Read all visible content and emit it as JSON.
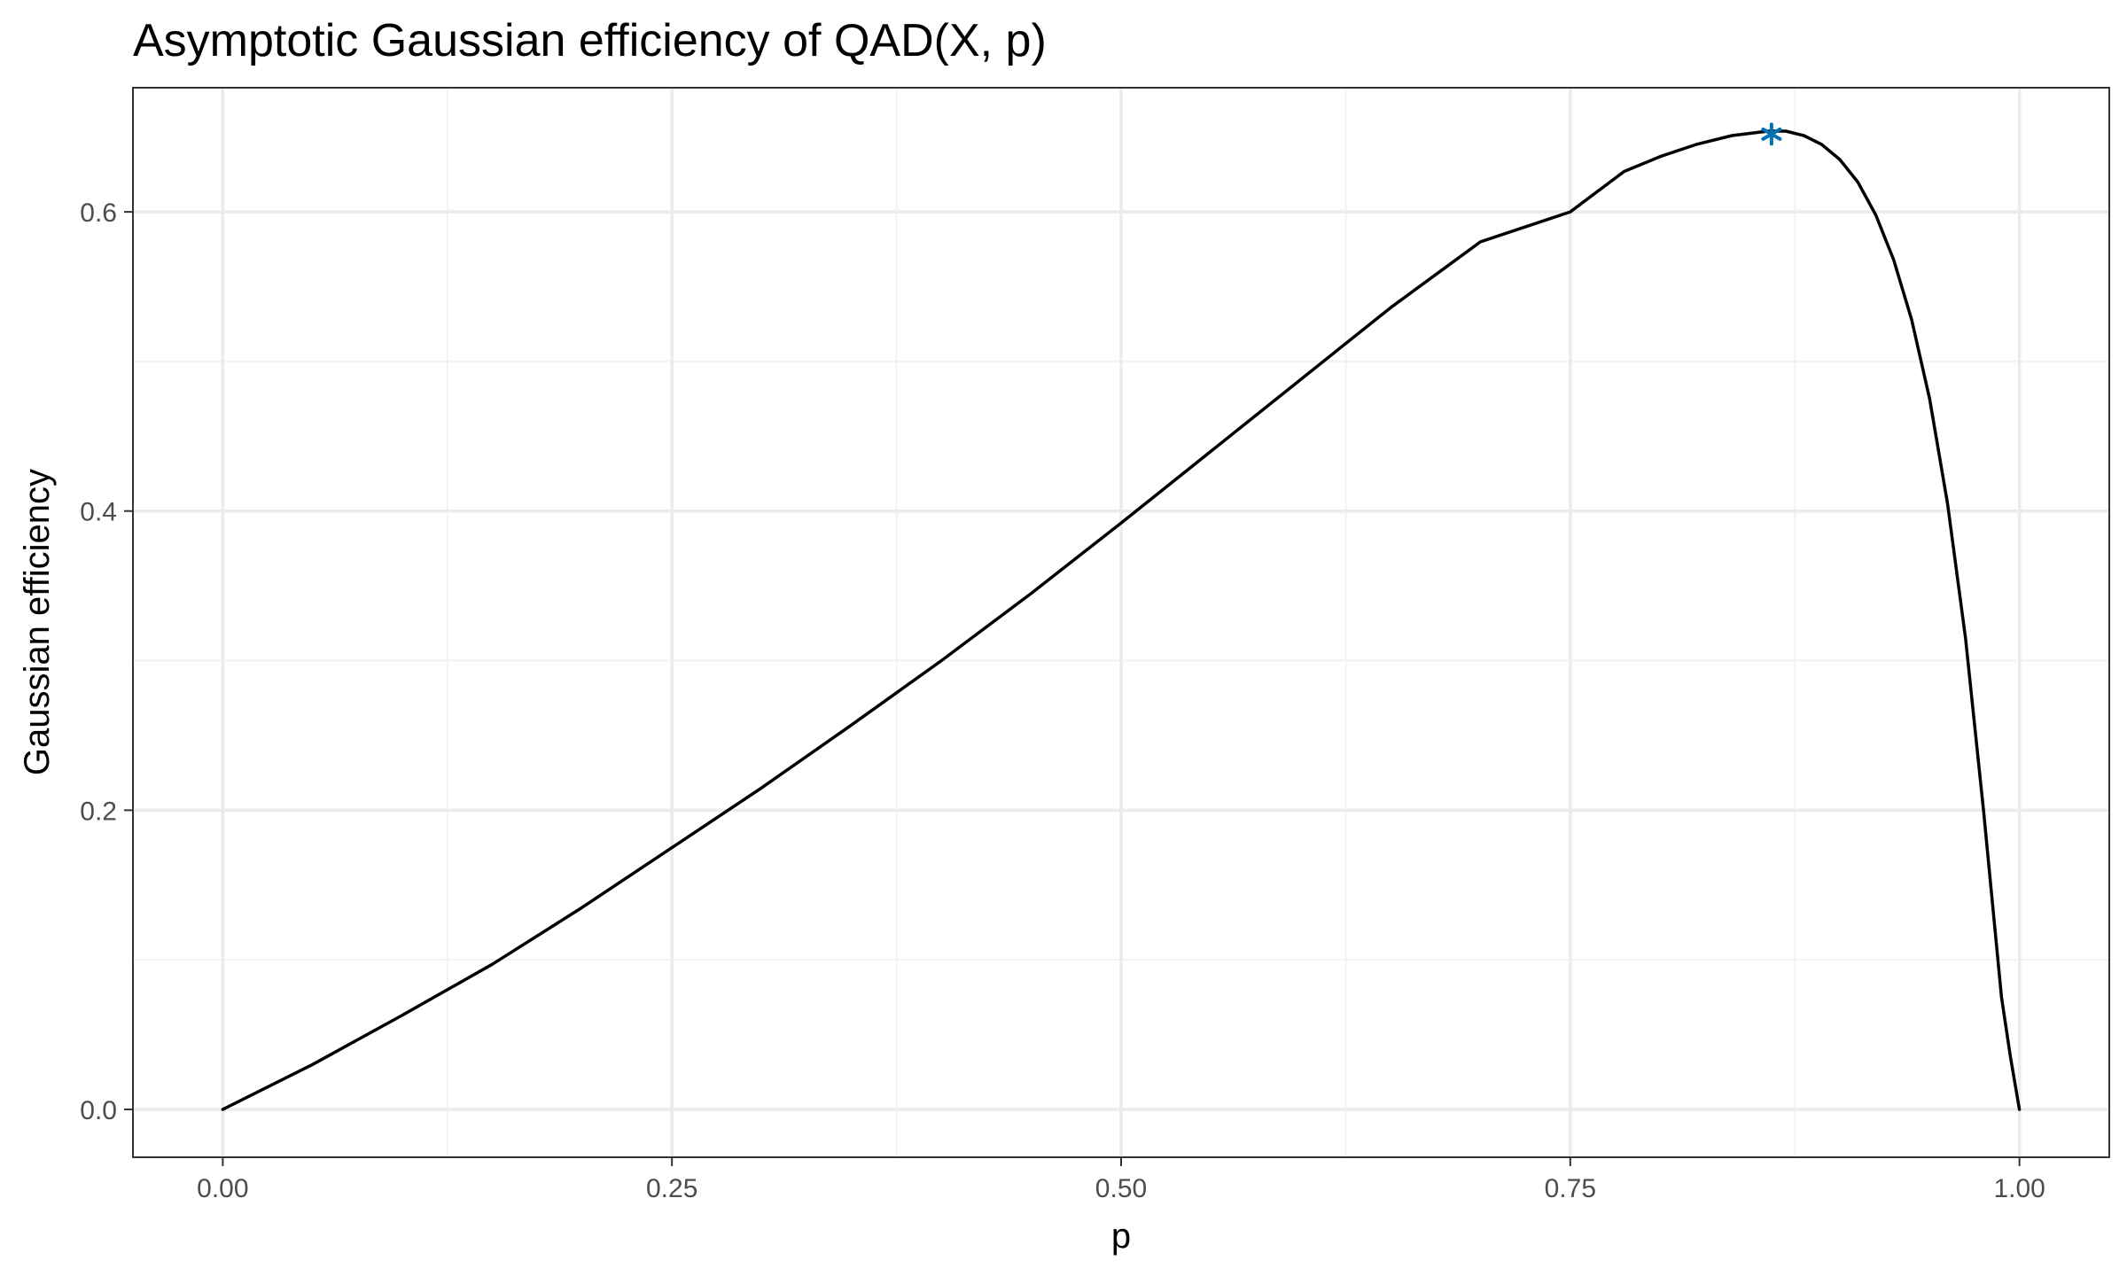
{
  "chart_data": {
    "type": "line",
    "title": "Asymptotic Gaussian efficiency of QAD(X, p)",
    "xlabel": "p",
    "ylabel": "Gaussian efficiency",
    "xlim": [
      -0.05,
      1.05
    ],
    "ylim": [
      -0.032,
      0.683
    ],
    "xticks": [
      0,
      0.25,
      0.5,
      0.75,
      1
    ],
    "xtick_labels": [
      "0.00",
      "0.25",
      "0.50",
      "0.75",
      "1.00"
    ],
    "xminor": [
      0.125,
      0.375,
      0.625,
      0.875
    ],
    "yticks": [
      0,
      0.2,
      0.4,
      0.6
    ],
    "ytick_labels": [
      "0.0",
      "0.2",
      "0.4",
      "0.6"
    ],
    "yminor": [
      0.1,
      0.3,
      0.5
    ],
    "grid": true,
    "legend": "none",
    "series": [
      {
        "color": "#000000",
        "x": [
          0,
          0.05,
          0.1,
          0.15,
          0.2,
          0.25,
          0.3,
          0.35,
          0.4,
          0.45,
          0.5,
          0.55,
          0.6,
          0.65,
          0.7,
          0.75,
          0.78,
          0.8,
          0.82,
          0.84,
          0.86,
          0.87,
          0.88,
          0.89,
          0.9,
          0.91,
          0.92,
          0.93,
          0.94,
          0.95,
          0.96,
          0.97,
          0.98,
          0.99,
          0.995,
          1.0
        ],
        "y": [
          0,
          0.03,
          0.063,
          0.097,
          0.135,
          0.175,
          0.215,
          0.257,
          0.3,
          0.345,
          0.392,
          0.44,
          0.488,
          0.536,
          0.58,
          0.6,
          0.627,
          0.637,
          0.645,
          0.651,
          0.654,
          0.654,
          0.651,
          0.645,
          0.635,
          0.62,
          0.598,
          0.568,
          0.528,
          0.475,
          0.405,
          0.315,
          0.2,
          0.075,
          0.035,
          0
        ]
      }
    ],
    "annotations": [
      {
        "type": "marker",
        "symbol": "asterisk",
        "x": 0.862,
        "y": 0.652,
        "color": "#0072B2"
      }
    ]
  }
}
